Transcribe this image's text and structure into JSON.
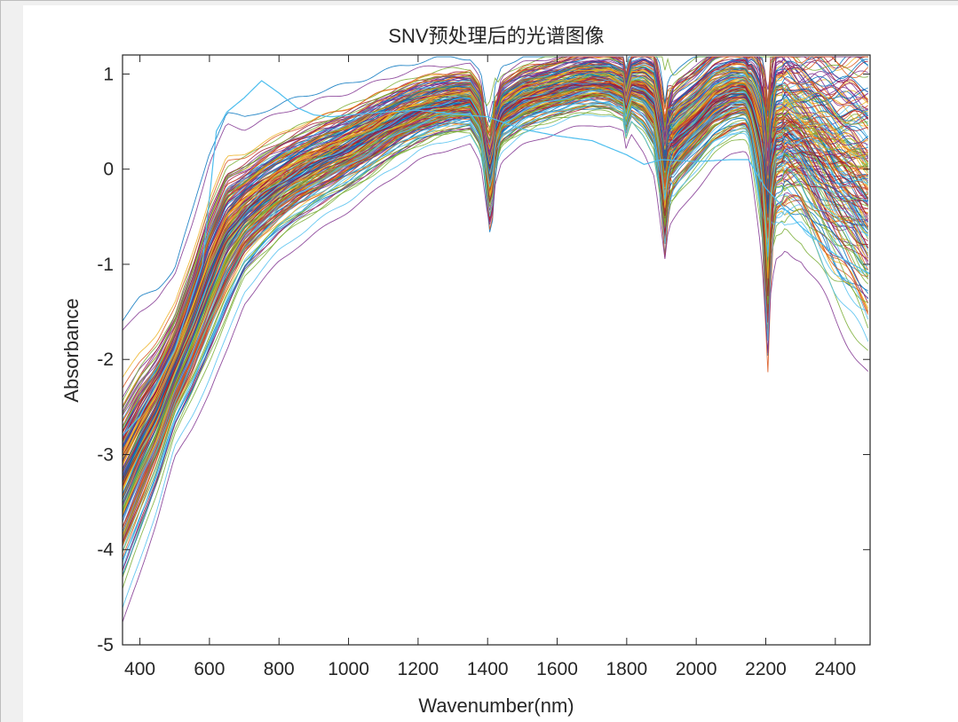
{
  "chart_data": {
    "type": "line",
    "title": "SNV预处理后的光谱图像",
    "xlabel": "Wavenumber(nm)",
    "ylabel": "Absorbance",
    "xlim": [
      350,
      2500
    ],
    "ylim": [
      -5,
      1.2
    ],
    "xticks": [
      400,
      600,
      800,
      1000,
      1200,
      1400,
      1600,
      1800,
      2000,
      2200,
      2400
    ],
    "yticks": [
      -5,
      -4,
      -3,
      -2,
      -1,
      0,
      1
    ],
    "grid": false,
    "series_count_approx": 200,
    "mean_spectrum": {
      "x": [
        350,
        400,
        450,
        500,
        550,
        600,
        650,
        700,
        750,
        800,
        850,
        900,
        950,
        1000,
        1050,
        1100,
        1150,
        1200,
        1250,
        1300,
        1350,
        1380,
        1400,
        1410,
        1420,
        1440,
        1500,
        1550,
        1600,
        1650,
        1700,
        1750,
        1790,
        1800,
        1810,
        1850,
        1880,
        1900,
        1910,
        1920,
        1950,
        2000,
        2050,
        2100,
        2140,
        2160,
        2180,
        2195,
        2205,
        2215,
        2230,
        2260,
        2300,
        2350,
        2400,
        2450,
        2500
      ],
      "y": [
        -3.3,
        -2.9,
        -2.55,
        -2.1,
        -1.65,
        -1.15,
        -0.72,
        -0.48,
        -0.32,
        -0.18,
        -0.06,
        0.04,
        0.13,
        0.22,
        0.32,
        0.43,
        0.53,
        0.61,
        0.67,
        0.71,
        0.72,
        0.55,
        0.05,
        -0.1,
        0.35,
        0.6,
        0.74,
        0.8,
        0.85,
        0.9,
        0.93,
        0.92,
        0.85,
        0.62,
        0.88,
        0.86,
        0.74,
        0.25,
        -0.05,
        0.25,
        0.38,
        0.55,
        0.74,
        0.83,
        0.85,
        0.72,
        0.45,
        0.1,
        -0.6,
        0.15,
        0.4,
        0.45,
        0.38,
        0.22,
        0.05,
        -0.05,
        -0.2
      ]
    },
    "band_spread": {
      "x": [
        350,
        400,
        500,
        600,
        650,
        700,
        800,
        1000,
        1200,
        1350,
        1400,
        1600,
        1800,
        1900,
        2000,
        2150,
        2200,
        2300,
        2400,
        2500
      ],
      "y": [
        0.55,
        0.5,
        0.35,
        0.45,
        0.45,
        0.35,
        0.3,
        0.25,
        0.2,
        0.18,
        0.2,
        0.18,
        0.18,
        0.35,
        0.3,
        0.25,
        0.55,
        0.5,
        0.65,
        0.8
      ]
    },
    "outlier_spectrum": {
      "x": [
        350,
        400,
        500,
        580,
        620,
        650,
        700,
        750,
        800,
        850,
        900,
        950,
        1000,
        1100,
        1200,
        1300,
        1400,
        1500,
        1600,
        1700,
        1800,
        1850,
        1900,
        2000,
        2100,
        2150,
        2200,
        2300,
        2400,
        2500
      ],
      "y": [
        -2.8,
        -2.6,
        -1.9,
        -1.0,
        0.4,
        0.6,
        0.75,
        0.93,
        0.8,
        0.65,
        0.57,
        0.55,
        0.57,
        0.6,
        0.62,
        0.58,
        0.55,
        0.42,
        0.35,
        0.3,
        0.15,
        0.05,
        0.1,
        0.08,
        0.1,
        0.1,
        -0.2,
        -0.6,
        -0.9,
        -1.1
      ]
    },
    "palette": [
      "#0072bd",
      "#d95319",
      "#edb120",
      "#7e2f8e",
      "#77ac30",
      "#4dbeee",
      "#a2142f"
    ]
  }
}
